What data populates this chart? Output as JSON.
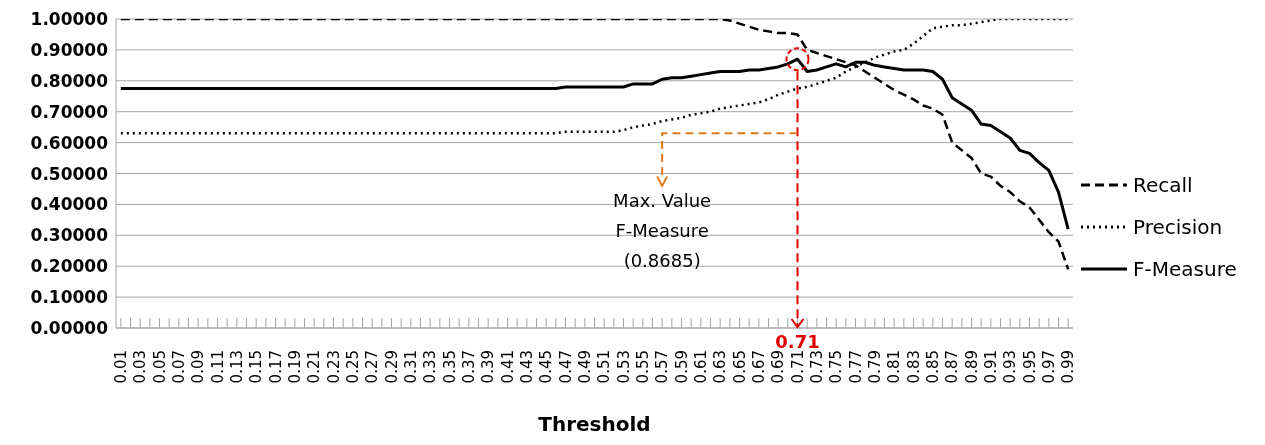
{
  "chart_data": {
    "type": "line",
    "xlabel": "Threshold",
    "categories": [
      "0.01",
      null,
      "0.03",
      null,
      "0.05",
      null,
      "0.07",
      null,
      "0.09",
      null,
      "0.11",
      null,
      "0.13",
      null,
      "0.15",
      null,
      "0.17",
      null,
      "0.19",
      null,
      "0.21",
      null,
      "0.23",
      null,
      "0.25",
      null,
      "0.27",
      null,
      "0.29",
      null,
      "0.31",
      null,
      "0.33",
      null,
      "0.35",
      null,
      "0.37",
      null,
      "0.39",
      null,
      "0.41",
      null,
      "0.43",
      null,
      "0.45",
      null,
      "0.47",
      null,
      "0.49",
      null,
      "0.51",
      null,
      "0.53",
      null,
      "0.55",
      null,
      "0.57",
      null,
      "0.59",
      null,
      "0.61",
      null,
      "0.63",
      null,
      "0.65",
      null,
      "0.67",
      null,
      "0.69",
      null,
      "0.71",
      null,
      "0.73",
      null,
      "0.75",
      null,
      "0.77",
      null,
      "0.79",
      null,
      "0.81",
      null,
      "0.83",
      null,
      "0.85",
      null,
      "0.87",
      null,
      "0.89",
      null,
      "0.91",
      null,
      "0.93",
      null,
      "0.95",
      null,
      "0.97",
      null,
      "0.99"
    ],
    "series": [
      {
        "name": "Recall",
        "color": "#000000",
        "line_style": "dashed",
        "values": [
          1,
          1,
          1,
          1,
          1,
          1,
          1,
          1,
          1,
          1,
          1,
          1,
          1,
          1,
          1,
          1,
          1,
          1,
          1,
          1,
          1,
          1,
          1,
          1,
          1,
          1,
          1,
          1,
          1,
          1,
          1,
          1,
          1,
          1,
          1,
          1,
          1,
          1,
          1,
          1,
          1,
          1,
          1,
          1,
          1,
          1,
          1,
          1,
          1,
          1,
          1,
          1,
          1,
          1,
          1,
          1,
          1,
          1,
          1,
          1,
          1,
          1,
          1,
          0.995,
          0.985,
          0.975,
          0.965,
          0.96,
          0.955,
          0.955,
          0.95,
          0.9,
          0.89,
          0.88,
          0.87,
          0.86,
          0.85,
          0.83,
          0.81,
          0.79,
          0.77,
          0.755,
          0.74,
          0.72,
          0.71,
          0.69,
          0.6,
          0.575,
          0.55,
          0.5,
          0.49,
          0.46,
          0.44,
          0.41,
          0.39,
          0.35,
          0.31,
          0.28,
          0.19
        ]
      },
      {
        "name": "Precision",
        "color": "#000000",
        "line_style": "dotted",
        "values": [
          0.63,
          0.63,
          0.63,
          0.63,
          0.63,
          0.63,
          0.63,
          0.63,
          0.63,
          0.63,
          0.63,
          0.63,
          0.63,
          0.63,
          0.63,
          0.63,
          0.63,
          0.63,
          0.63,
          0.63,
          0.63,
          0.63,
          0.63,
          0.63,
          0.63,
          0.63,
          0.63,
          0.63,
          0.63,
          0.63,
          0.63,
          0.63,
          0.63,
          0.63,
          0.63,
          0.63,
          0.63,
          0.63,
          0.63,
          0.63,
          0.63,
          0.63,
          0.63,
          0.63,
          0.63,
          0.63,
          0.635,
          0.635,
          0.635,
          0.635,
          0.635,
          0.635,
          0.64,
          0.65,
          0.655,
          0.66,
          0.67,
          0.675,
          0.68,
          0.69,
          0.695,
          0.7,
          0.71,
          0.715,
          0.72,
          0.725,
          0.73,
          0.74,
          0.755,
          0.765,
          0.775,
          0.78,
          0.79,
          0.8,
          0.81,
          0.83,
          0.845,
          0.86,
          0.875,
          0.885,
          0.895,
          0.9,
          0.92,
          0.945,
          0.97,
          0.975,
          0.98,
          0.98,
          0.985,
          0.99,
          0.995,
          1,
          1,
          1,
          1,
          1,
          1,
          1,
          1
        ]
      },
      {
        "name": "F-Measure",
        "color": "#000000",
        "line_style": "solid",
        "values": [
          0.775,
          0.775,
          0.775,
          0.775,
          0.775,
          0.775,
          0.775,
          0.775,
          0.775,
          0.775,
          0.775,
          0.775,
          0.775,
          0.775,
          0.775,
          0.775,
          0.775,
          0.775,
          0.775,
          0.775,
          0.775,
          0.775,
          0.775,
          0.775,
          0.775,
          0.775,
          0.775,
          0.775,
          0.775,
          0.775,
          0.775,
          0.775,
          0.775,
          0.775,
          0.775,
          0.775,
          0.775,
          0.775,
          0.775,
          0.775,
          0.775,
          0.775,
          0.775,
          0.775,
          0.775,
          0.775,
          0.78,
          0.78,
          0.78,
          0.78,
          0.78,
          0.78,
          0.78,
          0.79,
          0.79,
          0.79,
          0.805,
          0.81,
          0.81,
          0.815,
          0.82,
          0.825,
          0.83,
          0.83,
          0.83,
          0.835,
          0.835,
          0.84,
          0.845,
          0.855,
          0.87,
          0.83,
          0.835,
          0.845,
          0.855,
          0.845,
          0.86,
          0.86,
          0.85,
          0.845,
          0.84,
          0.835,
          0.835,
          0.835,
          0.83,
          0.805,
          0.745,
          0.725,
          0.705,
          0.66,
          0.655,
          0.635,
          0.615,
          0.575,
          0.565,
          0.535,
          0.51,
          0.44,
          0.32
        ]
      }
    ],
    "ylim": [
      0,
      1
    ],
    "yticks": [
      {
        "value": 0,
        "label": "0.00000"
      },
      {
        "value": 0.1,
        "label": "0.10000"
      },
      {
        "value": 0.2,
        "label": "0.20000"
      },
      {
        "value": 0.3,
        "label": "0.30000"
      },
      {
        "value": 0.4,
        "label": "0.40000"
      },
      {
        "value": 0.5,
        "label": "0.50000"
      },
      {
        "value": 0.6,
        "label": "0.60000"
      },
      {
        "value": 0.7,
        "label": "0.70000"
      },
      {
        "value": 0.8,
        "label": "0.80000"
      },
      {
        "value": 0.9,
        "label": "0.90000"
      },
      {
        "value": 1,
        "label": "1.00000"
      }
    ],
    "grid": "y",
    "legend": "right",
    "marker": "none",
    "ref_lines": [
      {
        "axis": "x",
        "value": "0.71",
        "label": "0.71",
        "color": "#e00000",
        "line_style": "dashed"
      }
    ],
    "annotations": [
      {
        "text": "Max. Value\nF-Measure\n(0.8685)",
        "x": "0.71",
        "y": 0.63
      }
    ]
  }
}
